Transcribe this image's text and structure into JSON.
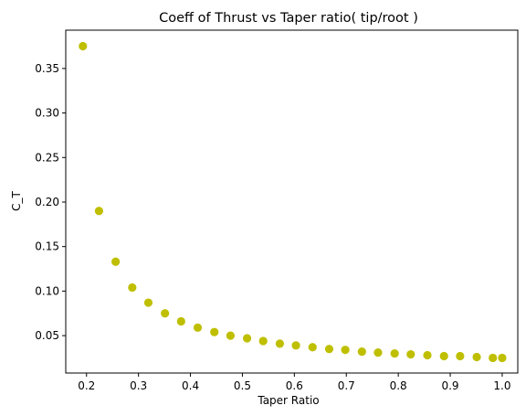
{
  "chart_data": {
    "type": "scatter",
    "title": "Coeff of Thrust vs Taper ratio( tip/root )",
    "xlabel": "Taper Ratio",
    "ylabel": "C_T",
    "xlim": [
      0.16,
      1.03
    ],
    "ylim": [
      0.008,
      0.393
    ],
    "xticks": [
      0.2,
      0.3,
      0.4,
      0.5,
      0.6,
      0.7,
      0.8,
      0.9,
      1.0
    ],
    "xtick_labels": [
      "0.2",
      "0.3",
      "0.4",
      "0.5",
      "0.6",
      "0.7",
      "0.8",
      "0.9",
      "1.0"
    ],
    "yticks": [
      0.05,
      0.1,
      0.15,
      0.2,
      0.25,
      0.3,
      0.35
    ],
    "ytick_labels": [
      "0.05",
      "0.10",
      "0.15",
      "0.20",
      "0.25",
      "0.30",
      "0.35"
    ],
    "grid": false,
    "marker_color": "#bfbf00",
    "series": [
      {
        "x": [
          0.193,
          0.224,
          0.256,
          0.288,
          0.319,
          0.351,
          0.382,
          0.414,
          0.446,
          0.477,
          0.509,
          0.54,
          0.572,
          0.603,
          0.635,
          0.667,
          0.698,
          0.73,
          0.761,
          0.793,
          0.824,
          0.856,
          0.888,
          0.919,
          0.951,
          0.982,
          1.0
        ],
        "y": [
          0.375,
          0.19,
          0.133,
          0.104,
          0.087,
          0.075,
          0.066,
          0.059,
          0.054,
          0.05,
          0.047,
          0.044,
          0.041,
          0.039,
          0.037,
          0.035,
          0.034,
          0.032,
          0.031,
          0.03,
          0.029,
          0.028,
          0.027,
          0.027,
          0.026,
          0.025,
          0.025
        ]
      }
    ]
  }
}
